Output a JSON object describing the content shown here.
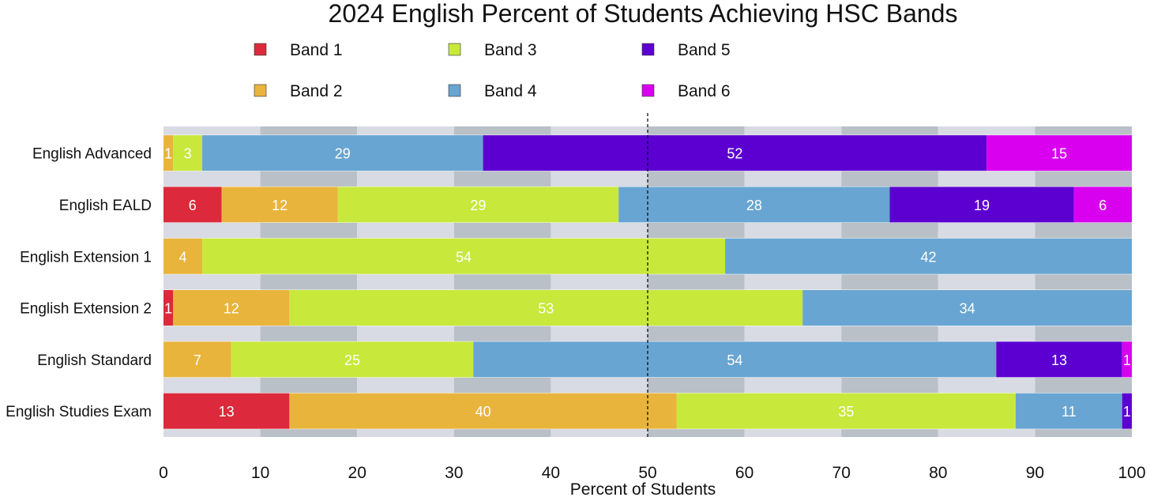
{
  "chart_data": {
    "type": "bar",
    "orientation": "horizontal",
    "stacked": true,
    "title": "2024 English Percent of Students Achieving HSC Bands",
    "xlabel": "Percent of Students",
    "ylabel": "",
    "xlim": [
      0,
      100
    ],
    "xticks": [
      0,
      10,
      20,
      30,
      40,
      50,
      60,
      70,
      80,
      90,
      100
    ],
    "reference_line": 50,
    "legend_position": "top",
    "categories": [
      "English Advanced",
      "English EALD",
      "English Extension 1",
      "English Extension 2",
      "English Standard",
      "English Studies Exam"
    ],
    "series": [
      {
        "name": "Band 1",
        "color": "#dc2a3c",
        "values": [
          0,
          6,
          0,
          1,
          0,
          13
        ]
      },
      {
        "name": "Band 2",
        "color": "#e9b43c",
        "values": [
          1,
          12,
          4,
          12,
          7,
          40
        ]
      },
      {
        "name": "Band 3",
        "color": "#c8e83c",
        "values": [
          3,
          29,
          54,
          53,
          25,
          35
        ]
      },
      {
        "name": "Band 4",
        "color": "#68a5d2",
        "values": [
          29,
          28,
          42,
          34,
          54,
          11
        ]
      },
      {
        "name": "Band 5",
        "color": "#5c00d2",
        "values": [
          52,
          19,
          0,
          0,
          13,
          1
        ]
      },
      {
        "name": "Band 6",
        "color": "#d900f0",
        "values": [
          15,
          6,
          0,
          0,
          1,
          0
        ]
      }
    ]
  }
}
